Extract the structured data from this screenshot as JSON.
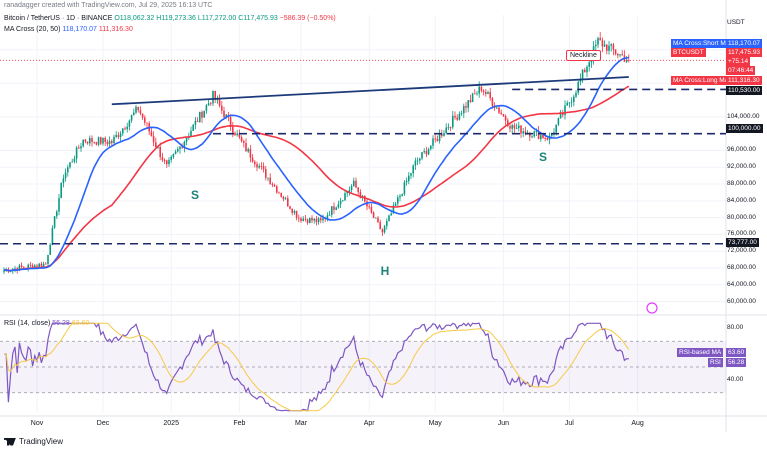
{
  "header": {
    "author": "ranadagger created with TradingView.com, Jul 29, 2025 16:13 UTC",
    "symbol": "Bitcoin / TetherUS · 1D · BINANCE",
    "open": "O118,062.32",
    "high": "H119,273.36",
    "low": "L117,272.00",
    "close": "C117,475.93",
    "change": "−586.39 (−0.50%)",
    "ma_indicator": "MA Cross (20, 50)",
    "ma_short_value": "118,170.07",
    "ma_long_value": "111,316.30"
  },
  "price_axis": {
    "currency": "USDT",
    "ticks": [
      {
        "price": 120000,
        "label": "120,000.00"
      },
      {
        "price": 112000,
        "label": "112,000.00"
      },
      {
        "price": 104000,
        "label": "104,000.00"
      },
      {
        "price": 96000,
        "label": "96,000.00"
      },
      {
        "price": 92000,
        "label": "92,000.00"
      },
      {
        "price": 88000,
        "label": "88,000.00"
      },
      {
        "price": 84000,
        "label": "84,000.00"
      },
      {
        "price": 80000,
        "label": "80,000.00"
      },
      {
        "price": 76000,
        "label": "76,000.00"
      },
      {
        "price": 72000,
        "label": "72,000.00"
      },
      {
        "price": 68000,
        "label": "68,000.00"
      },
      {
        "price": 64000,
        "label": "64,000.00"
      },
      {
        "price": 60000,
        "label": "60,000.00"
      }
    ]
  },
  "price_tags": {
    "ma_short": {
      "label": "MA Cross:Short MA",
      "value": "118,170.07",
      "price": 118170
    },
    "btc": {
      "label": "BTCUSDT",
      "value": "117,475.93",
      "change": "+75.14",
      "countdown": "07:46:44",
      "price": 117476
    },
    "ma_long": {
      "label": "MA Cross:Long MA",
      "value": "111,316.30",
      "price": 111316
    },
    "level_110": {
      "value": "110,530.00",
      "price": 110530
    },
    "level_100": {
      "value": "100,000.00",
      "price": 100000
    },
    "level_73": {
      "value": "73,777.00",
      "price": 73777
    }
  },
  "annotations": {
    "neckline": "Neckline",
    "left_shoulder": "S",
    "head": "H",
    "right_shoulder": "S"
  },
  "rsi": {
    "title": "RSI (14, close)",
    "value_a": "56.28",
    "value_b": "63.60",
    "ticks": [
      {
        "value": 80,
        "label": "80.00"
      },
      {
        "value": 60,
        "label": "60.00"
      },
      {
        "value": 40,
        "label": "40.00"
      }
    ],
    "based_ma_label": "RSI-based MA",
    "based_ma_value": "63.60",
    "rsi_label": "RSI",
    "rsi_value": "56.28"
  },
  "time_axis": {
    "labels": [
      {
        "label": "Nov",
        "date": "2024-11-01"
      },
      {
        "label": "Dec",
        "date": "2024-12-01"
      },
      {
        "label": "2025",
        "date": "2025-01-01"
      },
      {
        "label": "Feb",
        "date": "2025-02-01"
      },
      {
        "label": "Mar",
        "date": "2025-03-01"
      },
      {
        "label": "Apr",
        "date": "2025-04-01"
      },
      {
        "label": "May",
        "date": "2025-05-01"
      },
      {
        "label": "Jun",
        "date": "2025-06-01"
      },
      {
        "label": "Jul",
        "date": "2025-07-01"
      },
      {
        "label": "Aug",
        "date": "2025-08-01"
      }
    ]
  },
  "footer": {
    "brand": "TradingView"
  },
  "colors": {
    "up": "#089981",
    "down": "#f23645",
    "ma_short": "#2962ff",
    "ma_long": "#f23645",
    "trendline": "#1c3a7a",
    "rsi": "#7e57c2",
    "rsi_ma": "#f7c948"
  },
  "chart_data": {
    "type": "candlestick",
    "start_date": "2024-10-17",
    "pattern": "inverse head and shoulders",
    "key_closes": [
      {
        "date": "2024-10-17",
        "price": 67500
      },
      {
        "date": "2024-11-05",
        "price": 69000
      },
      {
        "date": "2024-11-13",
        "price": 90000
      },
      {
        "date": "2024-11-22",
        "price": 98500
      },
      {
        "date": "2024-12-05",
        "price": 98000
      },
      {
        "date": "2024-12-17",
        "price": 106000
      },
      {
        "date": "2024-12-30",
        "price": 92000
      },
      {
        "date": "2025-01-20",
        "price": 109000
      },
      {
        "date": "2025-02-03",
        "price": 97000
      },
      {
        "date": "2025-02-28",
        "price": 80000
      },
      {
        "date": "2025-03-10",
        "price": 79000
      },
      {
        "date": "2025-03-25",
        "price": 88000
      },
      {
        "date": "2025-04-07",
        "price": 76500
      },
      {
        "date": "2025-04-22",
        "price": 93000
      },
      {
        "date": "2025-05-22",
        "price": 111000
      },
      {
        "date": "2025-06-05",
        "price": 101500
      },
      {
        "date": "2025-06-22",
        "price": 99000
      },
      {
        "date": "2025-07-03",
        "price": 109500
      },
      {
        "date": "2025-07-14",
        "price": 122000
      },
      {
        "date": "2025-07-28",
        "price": 117476
      }
    ],
    "levels": [
      110530,
      100000,
      73777
    ],
    "neckline": [
      {
        "date": "2024-12-05",
        "price": 107000
      },
      {
        "date": "2025-07-28",
        "price": 113500
      }
    ],
    "ma_short_last": 118170.07,
    "ma_long_last": 111316.3,
    "rsi_last": 56.28,
    "rsi_ma_last": 63.6
  }
}
